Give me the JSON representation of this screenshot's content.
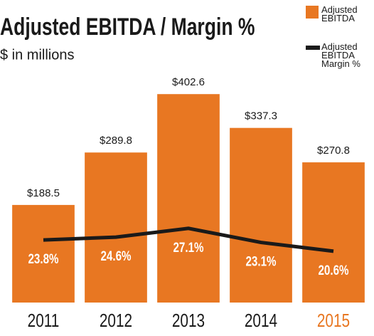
{
  "chart_data": {
    "type": "bar_line",
    "title": "Adjusted EBITDA / Margin %",
    "subtitle": "$ in millions",
    "categories": [
      "2011",
      "2012",
      "2013",
      "2014",
      "2015"
    ],
    "category_label_colors": [
      "#1a1a1a",
      "#1a1a1a",
      "#1a1a1a",
      "#1a1a1a",
      "#e87722"
    ],
    "ylim": [
      0,
      550
    ],
    "y2lim": [
      6,
      87
    ],
    "series": [
      {
        "name": "Adjusted EBITDA",
        "color": "#e87722",
        "values": [
          188.5,
          289.8,
          402.6,
          337.3,
          270.8
        ],
        "value_labels": [
          "$188.5",
          "$289.8",
          "$402.6",
          "$337.3",
          "$270.8"
        ]
      },
      {
        "name": "Adjusted EBITDA Margin %",
        "color": "#1a1a1a",
        "axis": "y2",
        "values": [
          23.8,
          24.6,
          27.1,
          23.1,
          20.6
        ],
        "value_labels": [
          "23.8%",
          "24.6%",
          "27.1%",
          "23.1%",
          "20.6%"
        ]
      }
    ]
  }
}
